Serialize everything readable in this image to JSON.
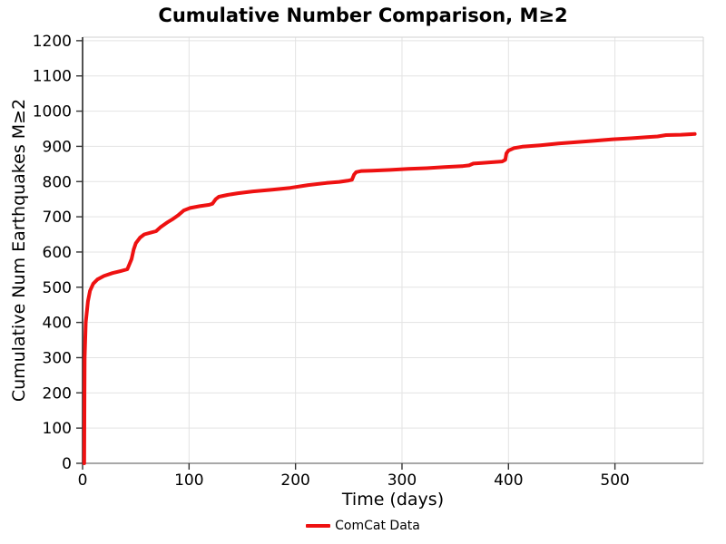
{
  "chart_data": {
    "type": "line",
    "title": "Cumulative Number Comparison, M≥2",
    "xlabel": "Time (days)",
    "ylabel": "Cumulative Num Earthquakes M≥2",
    "xlim": [
      0,
      583
    ],
    "ylim": [
      0,
      1210
    ],
    "x_ticks": [
      0,
      100,
      200,
      300,
      400,
      500
    ],
    "y_ticks": [
      0,
      100,
      200,
      300,
      400,
      500,
      600,
      700,
      800,
      900,
      1000,
      1100,
      1200
    ],
    "grid": true,
    "legend": {
      "position": "bottom-center",
      "entries": [
        {
          "label": "ComCat Data",
          "color": "#ee1111"
        }
      ]
    },
    "series": [
      {
        "name": "ComCat Data",
        "color": "#ee1111",
        "points": [
          [
            1.5,
            0
          ],
          [
            1.8,
            200
          ],
          [
            2,
            300
          ],
          [
            3,
            400
          ],
          [
            5,
            460
          ],
          [
            7,
            490
          ],
          [
            10,
            510
          ],
          [
            14,
            522
          ],
          [
            20,
            532
          ],
          [
            28,
            540
          ],
          [
            36,
            546
          ],
          [
            42,
            551
          ],
          [
            44,
            565
          ],
          [
            46,
            580
          ],
          [
            48,
            607
          ],
          [
            50,
            625
          ],
          [
            54,
            641
          ],
          [
            58,
            650
          ],
          [
            64,
            655
          ],
          [
            69,
            659
          ],
          [
            73,
            670
          ],
          [
            79,
            683
          ],
          [
            85,
            694
          ],
          [
            90,
            705
          ],
          [
            95,
            718
          ],
          [
            101,
            725
          ],
          [
            110,
            730
          ],
          [
            119,
            734
          ],
          [
            122,
            737
          ],
          [
            125,
            750
          ],
          [
            128,
            757
          ],
          [
            136,
            762
          ],
          [
            146,
            767
          ],
          [
            160,
            772
          ],
          [
            178,
            777
          ],
          [
            195,
            782
          ],
          [
            212,
            790
          ],
          [
            229,
            796
          ],
          [
            241,
            799
          ],
          [
            250,
            803
          ],
          [
            253,
            805
          ],
          [
            255,
            820
          ],
          [
            257,
            827
          ],
          [
            262,
            830
          ],
          [
            272,
            831
          ],
          [
            289,
            833
          ],
          [
            306,
            836
          ],
          [
            323,
            838
          ],
          [
            340,
            841
          ],
          [
            357,
            844
          ],
          [
            363,
            846
          ],
          [
            367,
            851
          ],
          [
            375,
            853
          ],
          [
            385,
            855
          ],
          [
            394,
            857
          ],
          [
            397,
            862
          ],
          [
            398,
            880
          ],
          [
            400,
            888
          ],
          [
            405,
            895
          ],
          [
            413,
            899
          ],
          [
            430,
            903
          ],
          [
            447,
            908
          ],
          [
            464,
            912
          ],
          [
            481,
            916
          ],
          [
            498,
            920
          ],
          [
            515,
            923
          ],
          [
            530,
            926
          ],
          [
            540,
            928
          ],
          [
            548,
            932
          ],
          [
            562,
            933
          ],
          [
            575,
            935
          ]
        ]
      }
    ],
    "style": {
      "grid_color": "#e3e3e3",
      "spine_left_color": "#262626",
      "spine_bottom_color": "#8c8c8c",
      "spine_light_color": "#d9d9d9",
      "tick_color": "#333333",
      "tick_label_color": "#000000"
    }
  }
}
